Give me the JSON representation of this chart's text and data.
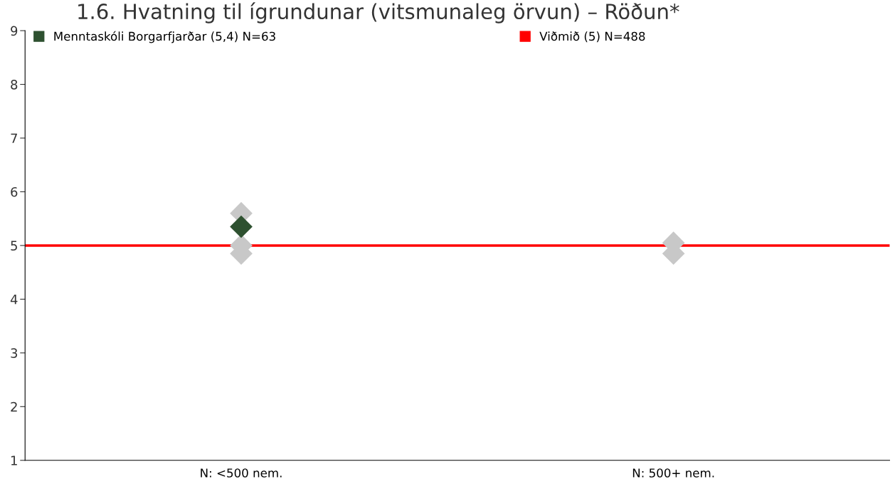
{
  "chart_data": {
    "type": "scatter",
    "title": "1.6. Hvatning til ígrundunar (vitsmunaleg örvun) – Röðun*",
    "categories": [
      "N: <500 nem.",
      "N: 500+ nem."
    ],
    "series": [
      {
        "color": "#c8c8c8",
        "x": [
          "N: <500 nem.",
          "N: <500 nem.",
          "N: <500 nem.",
          "N: 500+ nem.",
          "N: 500+ nem.",
          "N: 500+ nem."
        ],
        "values": [
          5.6,
          5.0,
          4.85,
          5.05,
          null,
          4.85
        ]
      },
      {
        "name": "Menntaskóli Borgarfjarðar (5,4) N=63",
        "color": "#2e5130",
        "x": [
          "N: <500 nem."
        ],
        "values": [
          5.35
        ]
      }
    ],
    "ref_lines": [
      {
        "axis": "y",
        "value": 5,
        "label": "Viðmið (5) N=488",
        "color": "#ff0000"
      }
    ],
    "ylim": [
      1,
      9
    ],
    "yticks": [
      1,
      2,
      3,
      4,
      5,
      6,
      7,
      8,
      9
    ],
    "marker": "diamond",
    "grid": false,
    "legend": "top left"
  }
}
